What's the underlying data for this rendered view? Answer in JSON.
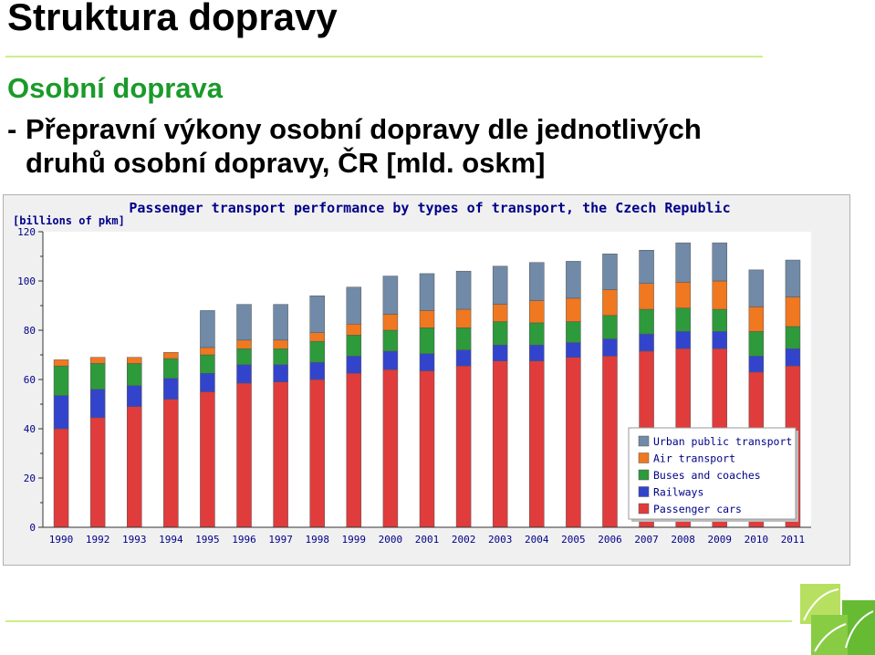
{
  "slide": {
    "title": "Struktura dopravy",
    "subtitle": "Osobní doprava",
    "bullet_dash": "-",
    "bullet_line1": "Přepravní výkony osobní dopravy dle jednotlivých",
    "bullet_line2": "druhů osobní dopravy, ČR [mld. oskm]"
  },
  "colors": {
    "accent_green": "#1a9a2a",
    "rule_green": "#ccee88"
  },
  "chart_data": {
    "type": "bar",
    "stacked": true,
    "title": "Passenger transport performance by types of transport, the Czech Republic",
    "ylabel": "[billions of pkm]",
    "ylim": [
      0,
      120
    ],
    "yticks": [
      0,
      20,
      40,
      60,
      80,
      100,
      120
    ],
    "grid": false,
    "legend_position": "bottom-right",
    "categories": [
      "1990",
      "1992",
      "1993",
      "1994",
      "1995",
      "1996",
      "1997",
      "1998",
      "1999",
      "2000",
      "2001",
      "2002",
      "2003",
      "2004",
      "2005",
      "2006",
      "2007",
      "2008",
      "2009",
      "2010",
      "2011"
    ],
    "series": [
      {
        "name": "Passenger cars",
        "color": "#e03c3c",
        "values": [
          40,
          44.5,
          49,
          52,
          55,
          58.5,
          59,
          60,
          62.5,
          64,
          63.5,
          65.5,
          67.5,
          67.5,
          69,
          69.5,
          71.5,
          72.5,
          72.5,
          63,
          65.5
        ]
      },
      {
        "name": "Railways",
        "color": "#3344cc",
        "values": [
          13.5,
          11.5,
          8.5,
          8.5,
          7.5,
          7.5,
          7,
          7,
          7,
          7.5,
          7,
          6.5,
          6.5,
          6.5,
          6,
          7,
          7,
          7,
          7,
          6.5,
          7
        ]
      },
      {
        "name": "Buses and coaches",
        "color": "#2d9a3c",
        "values": [
          12,
          10.5,
          9,
          8,
          7.5,
          6.5,
          6.5,
          8.5,
          8.5,
          8.5,
          10.5,
          9,
          9.5,
          9,
          8.5,
          9.5,
          10,
          9.5,
          9,
          10,
          9
        ]
      },
      {
        "name": "Air transport",
        "color": "#f07820",
        "values": [
          2.5,
          2.5,
          2.5,
          2.5,
          3,
          3.5,
          3.5,
          3.5,
          4.5,
          6.5,
          7,
          7.5,
          7,
          9,
          9.5,
          10.5,
          10.5,
          10.5,
          11.5,
          10,
          12
        ]
      },
      {
        "name": "Urban public transport",
        "color": "#708aa8",
        "values": [
          0,
          0,
          0,
          0,
          15,
          14.5,
          14.5,
          15,
          15,
          15.5,
          15,
          15.5,
          15.5,
          15.5,
          15,
          14.5,
          13.5,
          16,
          15.5,
          15,
          15
        ]
      }
    ]
  }
}
